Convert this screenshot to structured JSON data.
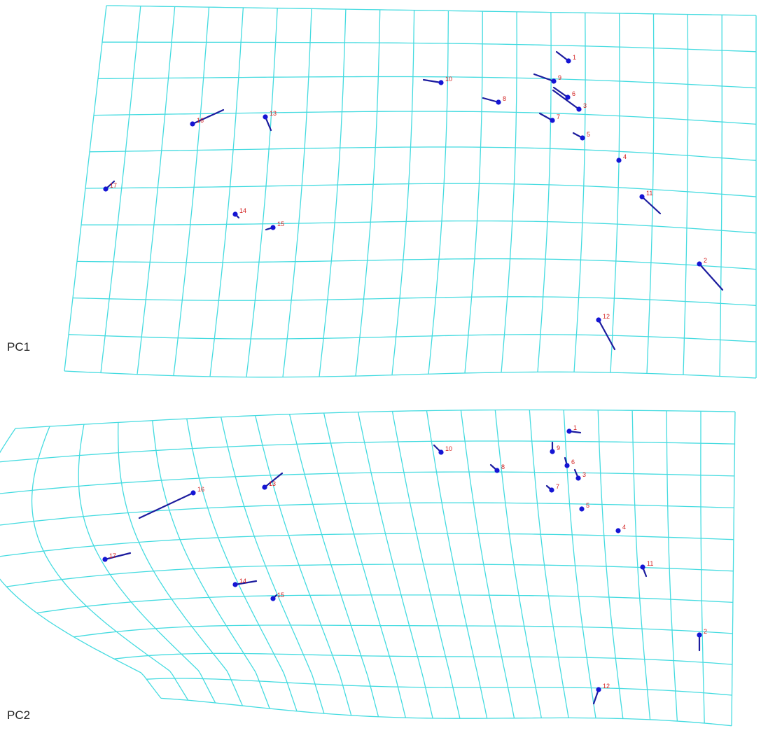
{
  "colors": {
    "grid": "#45dbe0",
    "vector": "#1c1c9e",
    "landmark": "#1515d4",
    "label": "#d21e1e",
    "text": "#222222",
    "background": "#ffffff"
  },
  "panels": [
    {
      "label": "PC1",
      "landmarks": [
        {
          "id": "1",
          "shift": [
            -17,
            -13
          ]
        },
        {
          "id": "2",
          "shift": [
            33,
            37
          ]
        },
        {
          "id": "3",
          "shift": [
            -37,
            -27
          ]
        },
        {
          "id": "4",
          "shift": [
            0,
            0
          ]
        },
        {
          "id": "5",
          "shift": [
            -13,
            -7
          ]
        },
        {
          "id": "6",
          "shift": [
            -20,
            -14
          ]
        },
        {
          "id": "7",
          "shift": [
            -18,
            -10
          ]
        },
        {
          "id": "8",
          "shift": [
            -22,
            -6
          ]
        },
        {
          "id": "9",
          "shift": [
            -28,
            -10
          ]
        },
        {
          "id": "10",
          "shift": [
            -25,
            -4
          ]
        },
        {
          "id": "11",
          "shift": [
            26,
            24
          ]
        },
        {
          "id": "12",
          "shift": [
            23,
            42
          ]
        },
        {
          "id": "13",
          "shift": [
            8,
            19
          ]
        },
        {
          "id": "14",
          "shift": [
            5,
            5
          ]
        },
        {
          "id": "15",
          "shift": [
            -10,
            3
          ]
        },
        {
          "id": "16",
          "shift": [
            44,
            -20
          ]
        },
        {
          "id": "17",
          "shift": [
            12,
            -11
          ]
        }
      ]
    },
    {
      "label": "PC2",
      "landmarks": [
        {
          "id": "1",
          "shift": [
            16,
            2
          ]
        },
        {
          "id": "2",
          "shift": [
            0,
            22
          ]
        },
        {
          "id": "3",
          "shift": [
            -5,
            -12
          ]
        },
        {
          "id": "4",
          "shift": [
            0,
            0
          ]
        },
        {
          "id": "5",
          "shift": [
            0,
            0
          ]
        },
        {
          "id": "6",
          "shift": [
            -3,
            -11
          ]
        },
        {
          "id": "7",
          "shift": [
            -7,
            -6
          ]
        },
        {
          "id": "8",
          "shift": [
            -9,
            -8
          ]
        },
        {
          "id": "9",
          "shift": [
            0,
            -13
          ]
        },
        {
          "id": "10",
          "shift": [
            -10,
            -10
          ]
        },
        {
          "id": "11",
          "shift": [
            5,
            13
          ]
        },
        {
          "id": "12",
          "shift": [
            -7,
            20
          ]
        },
        {
          "id": "13",
          "shift": [
            25,
            -20
          ]
        },
        {
          "id": "14",
          "shift": [
            30,
            -5
          ]
        },
        {
          "id": "15",
          "shift": [
            5,
            -5
          ]
        },
        {
          "id": "16",
          "shift": [
            -77,
            36
          ]
        },
        {
          "id": "17",
          "shift": [
            36,
            -9
          ]
        }
      ]
    }
  ]
}
